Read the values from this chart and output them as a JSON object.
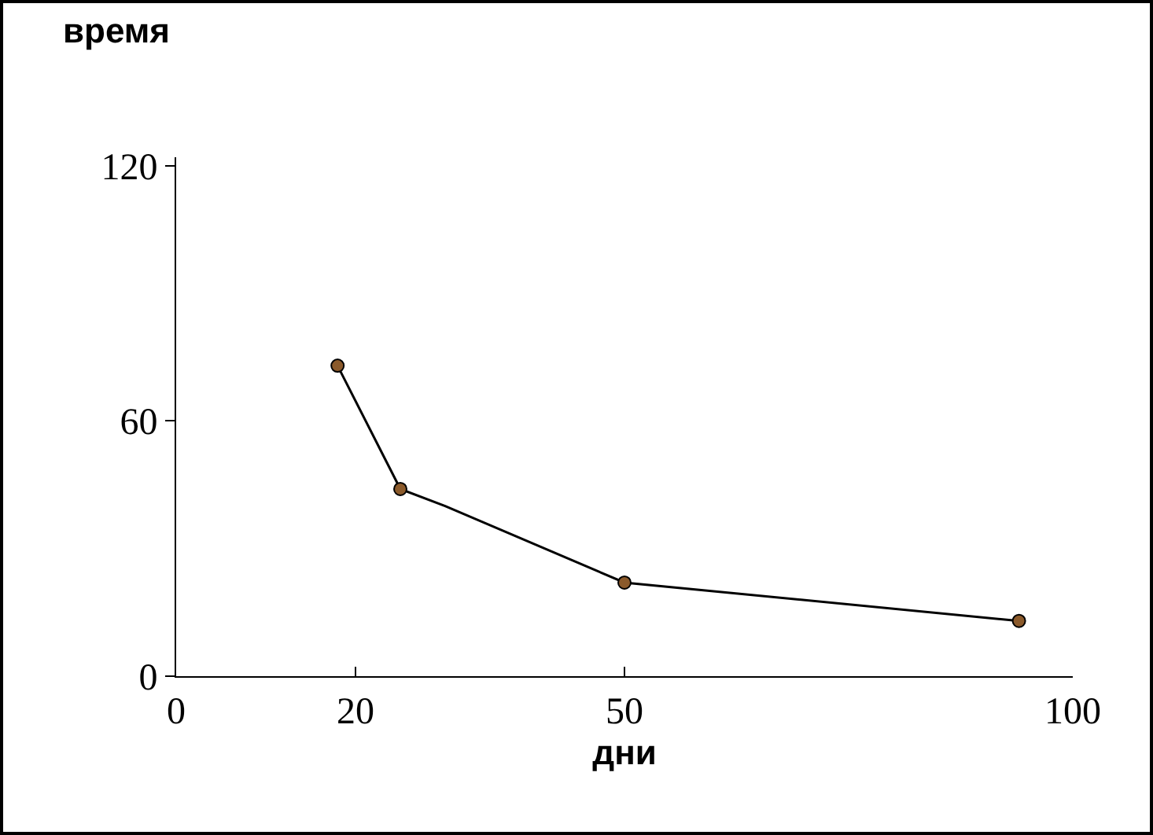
{
  "chart_data": {
    "type": "line",
    "xlabel": "дни",
    "ylabel": "время",
    "xlim": [
      0,
      100
    ],
    "xticks": [
      0,
      20,
      50,
      100
    ],
    "ylim": [
      0,
      122
    ],
    "yticks": [
      0,
      60,
      120
    ],
    "grid": false,
    "series": [
      {
        "color": "#000000",
        "marker": "none",
        "x": [
          18,
          25,
          30,
          50,
          94
        ],
        "values": [
          73,
          44,
          40,
          22,
          13
        ]
      },
      {
        "type": "scatter",
        "color": "#8b5a2b",
        "marker": "circle",
        "x": [
          18,
          25,
          50,
          94
        ],
        "values": [
          73,
          44,
          22,
          13
        ]
      }
    ]
  }
}
